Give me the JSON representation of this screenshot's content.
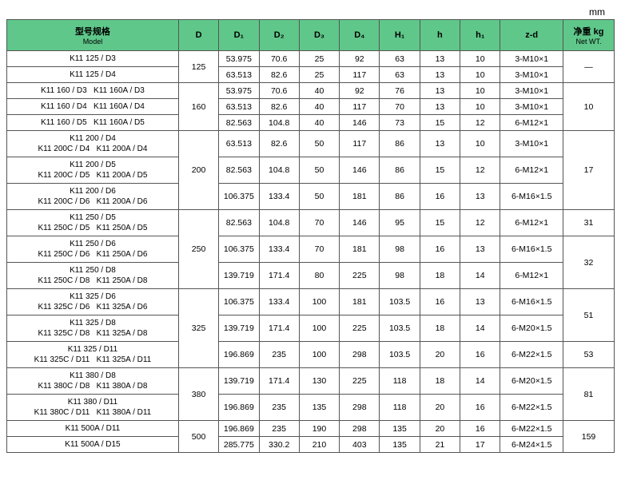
{
  "unit_label": "mm",
  "headers": {
    "model": "型号规格",
    "model_sub": "Model",
    "D": "D",
    "D1": "D₁",
    "D2": "D₂",
    "D3": "D₃",
    "D4": "D₄",
    "H1": "H₁",
    "h": "h",
    "h1": "h₁",
    "zd": "z-d",
    "wt": "净重 kg",
    "wt_sub": "Net WT."
  },
  "groups": [
    {
      "D": "125",
      "wt": "—",
      "wt_span": 2,
      "rows": [
        {
          "model": "K11 125 / D3",
          "D1": "53.975",
          "D2": "70.6",
          "D3": "25",
          "D4": "92",
          "H1": "63",
          "h": "13",
          "h1": "10",
          "zd": "3-M10×1"
        },
        {
          "model": "K11 125 / D4",
          "D1": "63.513",
          "D2": "82.6",
          "D3": "25",
          "D4": "117",
          "H1": "63",
          "h": "13",
          "h1": "10",
          "zd": "3-M10×1"
        }
      ]
    },
    {
      "D": "160",
      "wt": "10",
      "wt_span": 3,
      "rows": [
        {
          "model": "K11 160 / D3   K11 160A / D3",
          "D1": "53.975",
          "D2": "70.6",
          "D3": "40",
          "D4": "92",
          "H1": "76",
          "h": "13",
          "h1": "10",
          "zd": "3-M10×1"
        },
        {
          "model": "K11 160 / D4   K11 160A / D4",
          "D1": "63.513",
          "D2": "82.6",
          "D3": "40",
          "D4": "117",
          "H1": "70",
          "h": "13",
          "h1": "10",
          "zd": "3-M10×1"
        },
        {
          "model": "K11 160 / D5   K11 160A / D5",
          "D1": "82.563",
          "D2": "104.8",
          "D3": "40",
          "D4": "146",
          "H1": "73",
          "h": "15",
          "h1": "12",
          "zd": "6-M12×1"
        }
      ]
    },
    {
      "D": "200",
      "wt": "17",
      "wt_span": 3,
      "rows": [
        {
          "model": "K11 200 / D4\nK11 200C / D4   K11 200A / D4",
          "D1": "63.513",
          "D2": "82.6",
          "D3": "50",
          "D4": "117",
          "H1": "86",
          "h": "13",
          "h1": "10",
          "zd": "3-M10×1"
        },
        {
          "model": "K11 200 / D5\nK11 200C / D5   K11 200A / D5",
          "D1": "82.563",
          "D2": "104.8",
          "D3": "50",
          "D4": "146",
          "H1": "86",
          "h": "15",
          "h1": "12",
          "zd": "6-M12×1"
        },
        {
          "model": "K11 200 / D6\nK11 200C / D6   K11 200A / D6",
          "D1": "106.375",
          "D2": "133.4",
          "D3": "50",
          "D4": "181",
          "H1": "86",
          "h": "16",
          "h1": "13",
          "zd": "6-M16×1.5"
        }
      ]
    },
    {
      "D": "250",
      "wts": [
        {
          "val": "31",
          "span": 1
        },
        {
          "val": "32",
          "span": 2
        }
      ],
      "rows": [
        {
          "model": "K11 250 / D5\nK11 250C / D5   K11 250A / D5",
          "D1": "82.563",
          "D2": "104.8",
          "D3": "70",
          "D4": "146",
          "H1": "95",
          "h": "15",
          "h1": "12",
          "zd": "6-M12×1"
        },
        {
          "model": "K11 250 / D6\nK11 250C / D6   K11 250A / D6",
          "D1": "106.375",
          "D2": "133.4",
          "D3": "70",
          "D4": "181",
          "H1": "98",
          "h": "16",
          "h1": "13",
          "zd": "6-M16×1.5"
        },
        {
          "model": "K11 250 / D8\nK11 250C / D8   K11 250A / D8",
          "D1": "139.719",
          "D2": "171.4",
          "D3": "80",
          "D4": "225",
          "H1": "98",
          "h": "18",
          "h1": "14",
          "zd": "6-M12×1"
        }
      ]
    },
    {
      "D": "325",
      "wts": [
        {
          "val": "51",
          "span": 2
        },
        {
          "val": "53",
          "span": 1
        }
      ],
      "rows": [
        {
          "model": "K11 325 / D6\nK11 325C / D6   K11 325A / D6",
          "D1": "106.375",
          "D2": "133.4",
          "D3": "100",
          "D4": "181",
          "H1": "103.5",
          "h": "16",
          "h1": "13",
          "zd": "6-M16×1.5"
        },
        {
          "model": "K11 325 / D8\nK11 325C / D8   K11 325A / D8",
          "D1": "139.719",
          "D2": "171.4",
          "D3": "100",
          "D4": "225",
          "H1": "103.5",
          "h": "18",
          "h1": "14",
          "zd": "6-M20×1.5"
        },
        {
          "model": "K11 325 / D11\nK11 325C / D11   K11 325A / D11",
          "D1": "196.869",
          "D2": "235",
          "D3": "100",
          "D4": "298",
          "H1": "103.5",
          "h": "20",
          "h1": "16",
          "zd": "6-M22×1.5"
        }
      ]
    },
    {
      "D": "380",
      "wt": "81",
      "wt_span": 2,
      "rows": [
        {
          "model": "K11 380 / D8\nK11 380C / D8   K11 380A / D8",
          "D1": "139.719",
          "D2": "171.4",
          "D3": "130",
          "D4": "225",
          "H1": "118",
          "h": "18",
          "h1": "14",
          "zd": "6-M20×1.5"
        },
        {
          "model": "K11 380 / D11\nK11 380C / D11   K11 380A / D11",
          "D1": "196.869",
          "D2": "235",
          "D3": "135",
          "D4": "298",
          "H1": "118",
          "h": "20",
          "h1": "16",
          "zd": "6-M22×1.5"
        }
      ]
    },
    {
      "D": "500",
      "wt": "159",
      "wt_span": 2,
      "rows": [
        {
          "model": "K11 500A / D11",
          "D1": "196.869",
          "D2": "235",
          "D3": "190",
          "D4": "298",
          "H1": "135",
          "h": "20",
          "h1": "16",
          "zd": "6-M22×1.5"
        },
        {
          "model": "K11 500A / D15",
          "D1": "285.775",
          "D2": "330.2",
          "D3": "210",
          "D4": "403",
          "H1": "135",
          "h": "21",
          "h1": "17",
          "zd": "6-M24×1.5"
        }
      ]
    }
  ]
}
